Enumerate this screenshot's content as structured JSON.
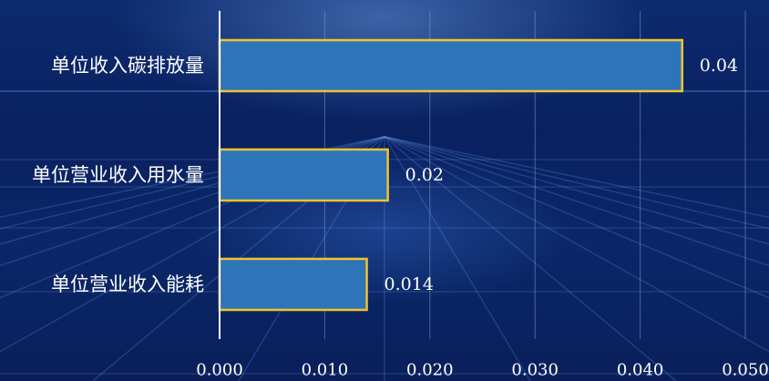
{
  "chart_data": {
    "type": "bar",
    "orientation": "horizontal",
    "categories": [
      "单位收入碳排放量",
      "单位营业收入用水量",
      "单位营业收入能耗"
    ],
    "values": [
      0.044,
      0.016,
      0.014
    ],
    "value_labels": [
      "0.04",
      "0.02",
      "0.014"
    ],
    "x_ticks": [
      "0.000",
      "0.010",
      "0.020",
      "0.030",
      "0.040",
      "0.050"
    ],
    "xlim": [
      0,
      0.05
    ],
    "title": "",
    "xlabel": "",
    "ylabel": "",
    "grid": true,
    "colors": {
      "bar_fill": "#2e74b8",
      "bar_stroke": "#f2c22e",
      "gridline": "#7f9cc8",
      "axis": "#ffffff",
      "text": "#ffffff"
    }
  }
}
